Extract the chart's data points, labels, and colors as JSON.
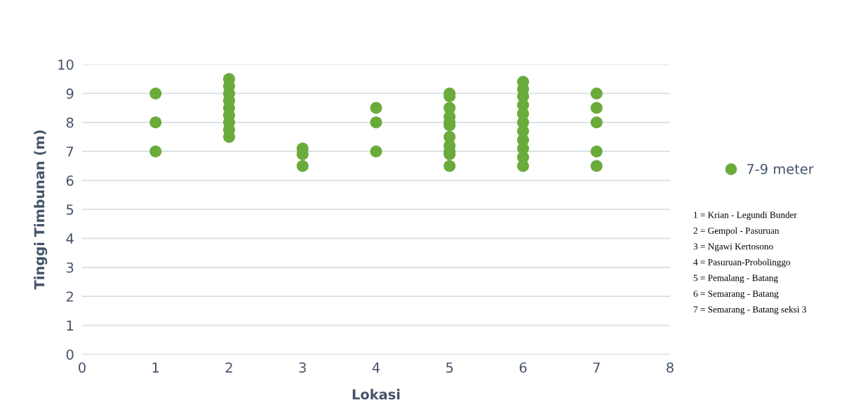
{
  "chart_data": {
    "type": "scatter",
    "xlabel": "Lokasi",
    "ylabel": "Tinggi Timbunan (m)",
    "x": [
      1,
      1,
      1,
      2,
      2,
      2,
      2,
      2,
      2,
      2,
      2,
      2,
      3,
      3,
      3,
      4,
      4,
      4,
      5,
      5,
      5,
      5,
      5,
      5,
      5,
      5,
      5,
      5,
      5,
      6,
      6,
      6,
      6,
      6,
      6,
      6,
      6,
      6,
      6,
      6,
      7,
      7,
      7,
      7,
      7
    ],
    "series": [
      {
        "name": "7-9 meter",
        "color": "#6aab3b",
        "values": [
          9,
          8,
          7,
          7.5,
          7.75,
          8.0,
          8.25,
          8.5,
          8.75,
          9.0,
          9.25,
          9.5,
          7.1,
          6.9,
          6.5,
          8.5,
          8,
          7,
          8.9,
          9.0,
          8.5,
          8.2,
          7.9,
          8.0,
          7.5,
          7.2,
          6.9,
          7.0,
          6.5,
          6.5,
          6.8,
          7.1,
          7.4,
          7.7,
          8.0,
          8.3,
          8.6,
          8.9,
          9.15,
          9.4,
          9,
          8.5,
          8,
          7,
          6.5
        ]
      }
    ],
    "xlim": [
      0,
      8
    ],
    "xticks": [
      0,
      1,
      2,
      3,
      4,
      5,
      6,
      7,
      8
    ],
    "ylim": [
      0,
      10
    ],
    "yticks": [
      0,
      1,
      2,
      3,
      4,
      5,
      6,
      7,
      8,
      9,
      10
    ],
    "grid": "y",
    "legend": "right",
    "marker": "circle",
    "annotations": [
      "1 = Krian - Legundi Bunder",
      "2 = Gempol - Pasuruan",
      "3 = Ngawi Kertosono",
      "4 = Pasuruan-Probolinggo",
      "5 = Pemalang - Batang",
      "6 = Semarang - Batang",
      "7 = Semarang - Batang seksi 3"
    ]
  }
}
